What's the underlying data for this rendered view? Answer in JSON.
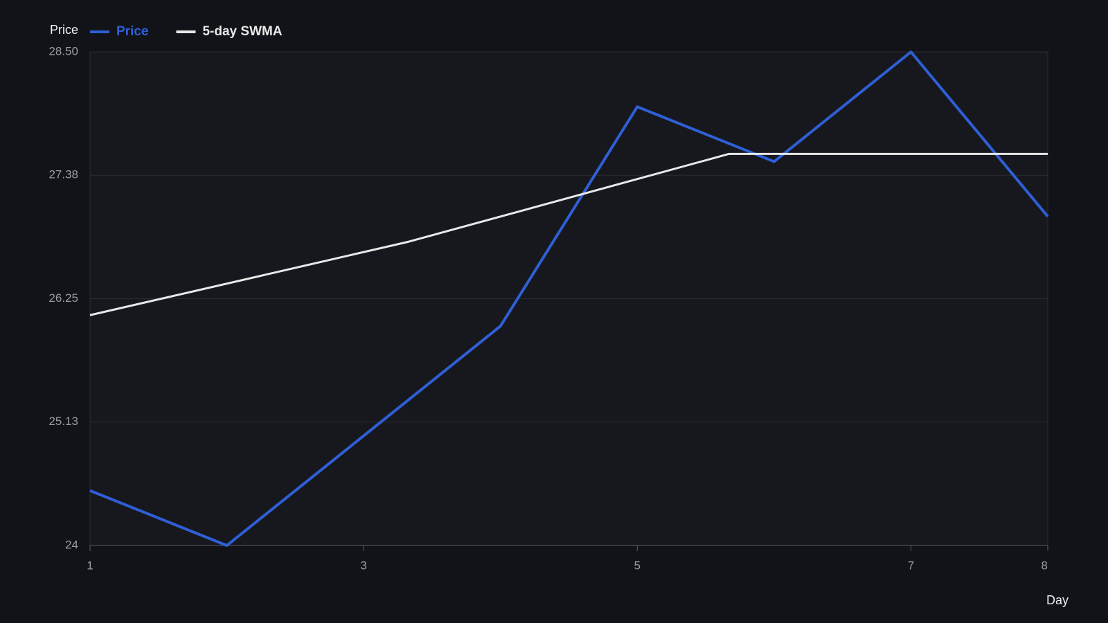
{
  "chart_data": {
    "type": "line",
    "y_label": "Price",
    "x_label": "Day",
    "xlim": [
      1,
      8
    ],
    "xticks": [
      1,
      3,
      5,
      7,
      8
    ],
    "ylim": [
      24,
      28.5
    ],
    "yticks": [
      24,
      {
        "value": 25.125,
        "label": "25.13"
      },
      26.25,
      {
        "value": 27.375,
        "label": "27.38"
      },
      {
        "value": 28.5,
        "label": "28.50"
      }
    ],
    "grid": true,
    "series": [
      {
        "name": "Price",
        "color": "#2f5fd6",
        "x": [
          1,
          2,
          3,
          4,
          5,
          6,
          7,
          8
        ],
        "values": [
          24.5,
          24.0,
          25.0,
          26.0,
          28.0,
          27.5,
          28.5,
          27.0
        ]
      },
      {
        "name": "5-day SWMA",
        "color": "#e8e8e8",
        "x": [
          1,
          3.33,
          5.67,
          8
        ],
        "values": [
          26.1,
          26.77,
          27.57,
          27.57
        ]
      }
    ]
  }
}
